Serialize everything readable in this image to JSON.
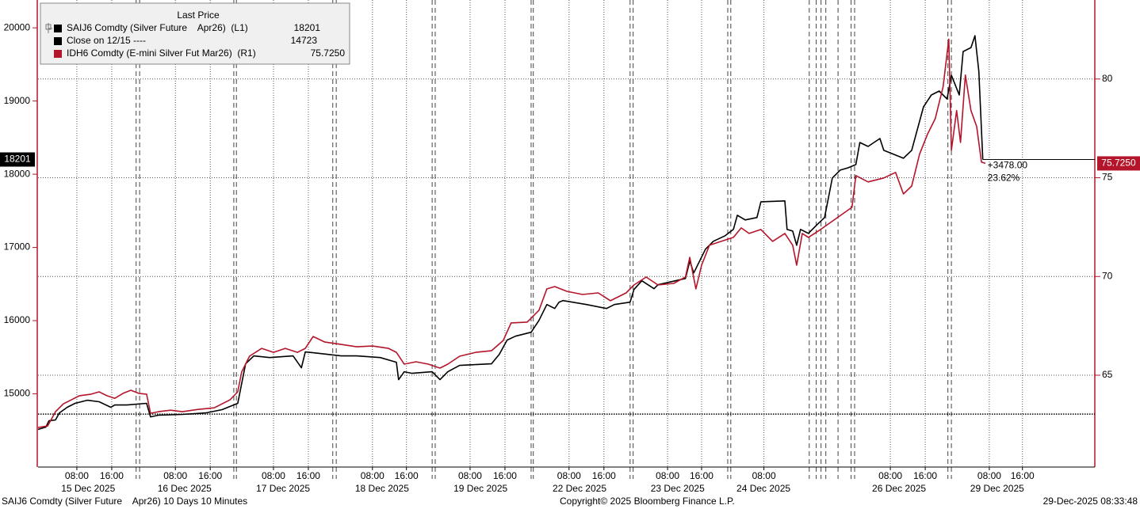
{
  "chart_data": {
    "type": "line",
    "xlim": [
      0,
      242.4
    ],
    "ylim": [
      14000,
      20380
    ],
    "y2lim": [
      60.35,
      84.0
    ],
    "yticks": [
      15000,
      16000,
      17000,
      18000,
      19000,
      20000
    ],
    "y2ticks": [
      65,
      70,
      75,
      80
    ],
    "grid": {
      "x": true,
      "y2": true
    },
    "xticks": [
      {
        "value": 8.9,
        "label": "08:00"
      },
      {
        "value": 16.9,
        "label": "16:00"
      },
      {
        "value": 31.5,
        "label": "08:00"
      },
      {
        "value": 39.5,
        "label": "16:00"
      },
      {
        "value": 54,
        "label": "08:00"
      },
      {
        "value": 62,
        "label": "16:00"
      },
      {
        "value": 76.7,
        "label": "08:00"
      },
      {
        "value": 84.5,
        "label": "16:00"
      },
      {
        "value": 99.1,
        "label": "08:00"
      },
      {
        "value": 107.1,
        "label": "16:00"
      },
      {
        "value": 121.8,
        "label": "08:00"
      },
      {
        "value": 129.8,
        "label": "16:00"
      },
      {
        "value": 144.4,
        "label": "08:00"
      },
      {
        "value": 152.2,
        "label": "16:00"
      },
      {
        "value": 166.5,
        "label": "08:00"
      },
      {
        "value": 195.5,
        "label": "08:00"
      },
      {
        "value": 203.5,
        "label": "16:00"
      },
      {
        "value": 218.2,
        "label": "08:00"
      },
      {
        "value": 225.8,
        "label": "16:00"
      }
    ],
    "day_ticks": [
      {
        "value": 11.5,
        "label": "15 Dec 2025"
      },
      {
        "value": 33.6,
        "label": "16 Dec 2025"
      },
      {
        "value": 56.2,
        "label": "17 Dec 2025"
      },
      {
        "value": 78.9,
        "label": "18 Dec 2025"
      },
      {
        "value": 101.5,
        "label": "19 Dec 2025"
      },
      {
        "value": 124.2,
        "label": "22 Dec 2025"
      },
      {
        "value": 146.7,
        "label": "23 Dec 2025"
      },
      {
        "value": 166.4,
        "label": "24 Dec 2025"
      },
      {
        "value": 197.5,
        "label": "26 Dec 2025"
      },
      {
        "value": 220,
        "label": "29 Dec 2025"
      }
    ],
    "session_breaks": [
      22.5,
      23.3,
      44.9,
      45.5,
      67.6,
      68.4,
      90.4,
      91.1,
      113.1,
      113.6,
      135.8,
      136.5,
      158.2,
      158.9,
      176.9,
      178.5,
      179.6,
      180.7,
      183.5,
      186.5,
      187.3,
      208.7,
      209.5
    ],
    "legend": {
      "header": "Last Price",
      "position": "upper left"
    },
    "series": [
      {
        "name": "SAIJ6 Comdty (Silver Future    Apr26)  (L1)",
        "color": "#000000",
        "axis": "y",
        "x": [
          0,
          1.8,
          2.5,
          4,
          4.9,
          6.7,
          8.5,
          11.3,
          14,
          16.7,
          17.6,
          20.4,
          24.9,
          25.8,
          27.6,
          33.1,
          38.5,
          42.2,
          45.8,
          47.6,
          49.5,
          53.1,
          58.5,
          60.4,
          61.3,
          63.1,
          69.5,
          73.1,
          78.5,
          82.2,
          82.7,
          84,
          85.8,
          90.4,
          92.2,
          94,
          96.7,
          104,
          105.8,
          107.6,
          109.5,
          113.1,
          114.9,
          116.7,
          118.5,
          119.5,
          120.4,
          125.8,
          130.4,
          132.2,
          135.8,
          136.7,
          138.5,
          141.3,
          142.2,
          148.5,
          149.5,
          150.4,
          151.3,
          153.1,
          154.9,
          157.6,
          159.5,
          160.4,
          162.2,
          164.9,
          165.8,
          171.3,
          171.8,
          173.1,
          174,
          174.9,
          176.7,
          178.5,
          180.4,
          181.3,
          182.2,
          184,
          185.8,
          187.6,
          188.5,
          190.4,
          193.1,
          194,
          198.5,
          200.4,
          203.1,
          204.9,
          206.7,
          208.5,
          209.5,
          211.3,
          212.2,
          214,
          214.9,
          215.8,
          216.7
        ],
        "values": [
          14514,
          14546,
          14632,
          14643,
          14740,
          14816,
          14870,
          14913,
          14892,
          14816,
          14848,
          14848,
          14870,
          14686,
          14708,
          14719,
          14740,
          14784,
          14870,
          15410,
          15518,
          15496,
          15518,
          15356,
          15572,
          15561,
          15518,
          15518,
          15496,
          15432,
          15194,
          15302,
          15280,
          15302,
          15194,
          15302,
          15389,
          15410,
          15540,
          15734,
          15788,
          15842,
          16004,
          16220,
          16166,
          16252,
          16274,
          16220,
          16166,
          16220,
          16252,
          16425,
          16544,
          16436,
          16490,
          16576,
          16814,
          16652,
          16760,
          16976,
          17084,
          17160,
          17246,
          17440,
          17376,
          17408,
          17624,
          17635,
          17246,
          17224,
          17030,
          17246,
          17192,
          17300,
          17408,
          17678,
          17948,
          18056,
          18088,
          18132,
          18434,
          18380,
          18488,
          18326,
          18218,
          18326,
          18920,
          19082,
          19136,
          19028,
          19352,
          19082,
          19676,
          19730,
          19892,
          19406,
          18201
        ]
      },
      {
        "name": "Close on 12/15 ----",
        "color": "#000000",
        "axis": "y",
        "style": "dotted",
        "value": 14723
      },
      {
        "name": "IDH6 Comdty (E-mini Silver Fut Mar26)  (R1)",
        "color": "#b5152b",
        "axis": "y2",
        "last_label": "75.7250",
        "x": [
          0,
          2.2,
          4,
          5.8,
          7.6,
          9.5,
          12.2,
          14,
          15.8,
          17.6,
          19.5,
          21.3,
          23.1,
          24.9,
          25.8,
          27.6,
          30.4,
          33.1,
          36.7,
          40.4,
          44,
          45.8,
          46.7,
          48.5,
          51.3,
          54,
          56.7,
          59.5,
          61.3,
          63.1,
          65.8,
          69.5,
          73.1,
          76.7,
          80.4,
          82.2,
          84,
          86.7,
          89.5,
          92.2,
          94,
          96.7,
          100.4,
          104,
          106.7,
          108.5,
          112.2,
          114.9,
          116.7,
          118.5,
          121.3,
          124.9,
          128.5,
          131.3,
          134.9,
          136.7,
          139.5,
          142.2,
          145.8,
          148.5,
          149.5,
          150.9,
          152.2,
          154,
          156.7,
          159.5,
          161.3,
          163.1,
          165.8,
          168.5,
          171.3,
          173.1,
          174,
          175.3,
          176.7,
          179.5,
          186.7,
          187.6,
          190.4,
          194,
          196.7,
          198.5,
          200.4,
          202.2,
          204,
          205.8,
          207.6,
          208.9,
          209.5,
          210.7,
          211.6,
          212.7,
          214,
          215.3,
          216.4,
          217.3
        ],
        "values": [
          62.35,
          62.43,
          63.15,
          63.55,
          63.75,
          63.96,
          64.04,
          64.16,
          63.96,
          63.83,
          64.08,
          64.24,
          64.08,
          64.04,
          63.07,
          63.15,
          63.23,
          63.15,
          63.27,
          63.35,
          63.75,
          64.16,
          65.16,
          65.96,
          66.36,
          66.16,
          66.36,
          66.16,
          66.36,
          66.96,
          66.68,
          66.56,
          66.44,
          66.48,
          66.36,
          66.16,
          65.56,
          65.68,
          65.56,
          65.36,
          65.56,
          65.96,
          66.16,
          66.24,
          66.76,
          67.65,
          67.69,
          68.29,
          69.37,
          69.49,
          69.25,
          69.09,
          69.17,
          68.77,
          69.17,
          69.57,
          69.97,
          69.57,
          69.65,
          69.97,
          70.97,
          69.37,
          70.57,
          71.58,
          71.78,
          71.98,
          72.46,
          72.18,
          72.38,
          71.78,
          72.18,
          71.58,
          70.57,
          72.18,
          71.98,
          72.38,
          73.5,
          75.11,
          74.79,
          74.99,
          75.27,
          74.18,
          74.58,
          76.19,
          77.19,
          77.99,
          79.6,
          82.01,
          76.39,
          78.4,
          76.79,
          80.2,
          78.4,
          77.59,
          75.79,
          75.725
        ]
      }
    ],
    "annotations": [
      "+3478.00",
      "23.62%"
    ]
  },
  "footer": {
    "left": "SAIJ6 Comdty (Silver Future    Apr26) 10 Days 10 Minutes",
    "center": "Copyright© 2025 Bloomberg Finance L.P.",
    "right": "29-Dec-2025 08:33:48"
  }
}
